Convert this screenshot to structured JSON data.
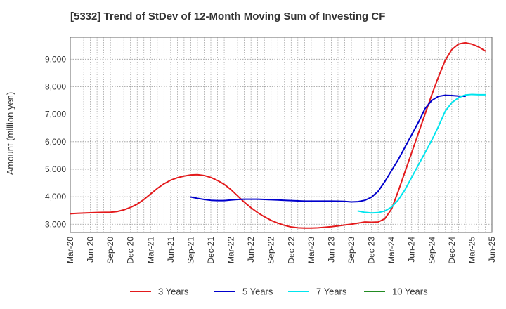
{
  "chart_data": {
    "type": "line",
    "title": "[5332]  Trend of StDev of 12-Month Moving Sum of Investing CF",
    "xlabel": "",
    "ylabel": "Amount (million yen)",
    "ylim": [
      2700,
      9800
    ],
    "yticks": [
      3000,
      4000,
      5000,
      6000,
      7000,
      8000,
      9000
    ],
    "ytick_labels": [
      "3,000",
      "4,000",
      "5,000",
      "6,000",
      "7,000",
      "8,000",
      "9,000"
    ],
    "xticks": [
      "Mar-20",
      "Jun-20",
      "Sep-20",
      "Dec-20",
      "Mar-21",
      "Jun-21",
      "Sep-21",
      "Dec-21",
      "Mar-22",
      "Jun-22",
      "Sep-22",
      "Dec-22",
      "Mar-23",
      "Jun-23",
      "Sep-23",
      "Dec-23",
      "Mar-24",
      "Jun-24",
      "Sep-24",
      "Dec-24",
      "Mar-25",
      "Jun-25"
    ],
    "grid": true,
    "legend_position": "bottom",
    "series": [
      {
        "name": "3 Years",
        "color": "#e31a1c",
        "start_index": 0,
        "values": [
          3380,
          3395,
          3405,
          3415,
          3425,
          3430,
          3435,
          3460,
          3520,
          3610,
          3730,
          3900,
          4100,
          4300,
          4470,
          4600,
          4690,
          4750,
          4790,
          4800,
          4770,
          4700,
          4590,
          4450,
          4260,
          4030,
          3800,
          3600,
          3420,
          3270,
          3140,
          3040,
          2960,
          2900,
          2870,
          2860,
          2860,
          2870,
          2890,
          2910,
          2940,
          2970,
          3000,
          3040,
          3080,
          3070,
          3080,
          3200,
          3550,
          4200,
          4900,
          5600,
          6300,
          7000,
          7700,
          8350,
          8950,
          9350,
          9550,
          9600,
          9550,
          9450,
          9300
        ]
      },
      {
        "name": "5 Years",
        "color": "#0000cc",
        "start_index": 18,
        "values": [
          3990,
          3940,
          3900,
          3870,
          3860,
          3860,
          3880,
          3900,
          3910,
          3910,
          3910,
          3900,
          3890,
          3880,
          3870,
          3860,
          3850,
          3840,
          3840,
          3840,
          3840,
          3840,
          3835,
          3830,
          3810,
          3820,
          3870,
          3980,
          4200,
          4550,
          4950,
          5350,
          5800,
          6250,
          6700,
          7200,
          7500,
          7650,
          7690,
          7680,
          7660,
          7650
        ]
      },
      {
        "name": "7 Years",
        "color": "#00e5ee",
        "start_index": 43,
        "values": [
          3480,
          3430,
          3410,
          3420,
          3480,
          3620,
          3880,
          4250,
          4700,
          5150,
          5600,
          6050,
          6550,
          7100,
          7420,
          7600,
          7700,
          7720,
          7710,
          7710
        ]
      },
      {
        "name": "10 Years",
        "color": "#228b22",
        "start_index": 0,
        "values": []
      }
    ]
  }
}
